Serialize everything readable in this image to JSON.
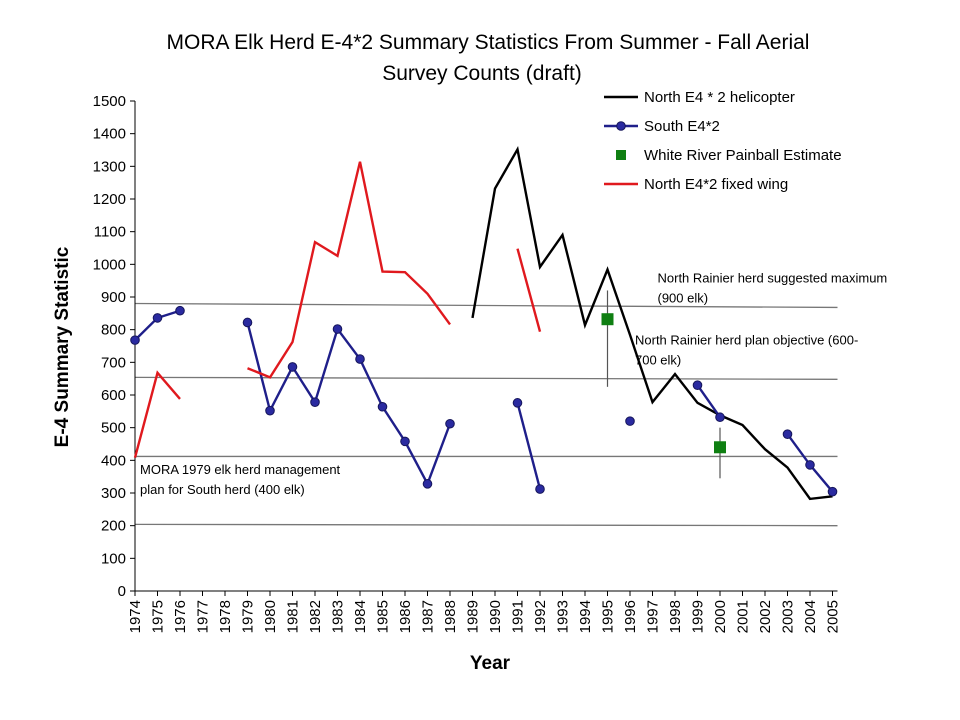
{
  "chart_data": {
    "type": "line",
    "title_lines": [
      "MORA Elk Herd E-4*2 Summary Statistics From Summer - Fall Aerial",
      "Survey Counts (draft)"
    ],
    "xlabel": "Year",
    "ylabel": "E-4 Summary Statistic",
    "ylim": [
      0,
      1500
    ],
    "yticks": [
      0,
      100,
      200,
      300,
      400,
      500,
      600,
      700,
      800,
      900,
      1000,
      1100,
      1200,
      1300,
      1400,
      1500
    ],
    "categories": [
      "1974",
      "1975",
      "1976",
      "1977",
      "1978",
      "1979",
      "1980",
      "1981",
      "1982",
      "1983",
      "1984",
      "1985",
      "1986",
      "1987",
      "1988",
      "1989",
      "1990",
      "1991",
      "1992",
      "1993",
      "1994",
      "1995",
      "1996",
      "1997",
      "1998",
      "1999",
      "2000",
      "2001",
      "2002",
      "2003",
      "2004",
      "2005"
    ],
    "grid": false,
    "legend_position": "top-right",
    "series": [
      {
        "name": "North E4 * 2 helicopter",
        "color": "#000000",
        "marker": "none",
        "values": [
          null,
          null,
          null,
          null,
          null,
          null,
          null,
          null,
          null,
          null,
          null,
          null,
          null,
          null,
          null,
          836,
          1232,
          1352,
          992,
          1090,
          814,
          984,
          784,
          578,
          664,
          576,
          538,
          508,
          434,
          378,
          282,
          290
        ]
      },
      {
        "name": "South E4*2",
        "color": "#1f1f8a",
        "marker": "circle",
        "values": [
          768,
          836,
          858,
          null,
          null,
          822,
          552,
          686,
          578,
          802,
          710,
          564,
          458,
          328,
          512,
          null,
          null,
          576,
          312,
          null,
          null,
          null,
          520,
          null,
          null,
          630,
          532,
          null,
          null,
          480,
          386,
          304
        ]
      },
      {
        "name": "White River Painball  Estimate",
        "color": "#0f7f12",
        "marker": "square",
        "line": false,
        "values": [
          null,
          null,
          null,
          null,
          null,
          null,
          null,
          null,
          null,
          null,
          null,
          null,
          null,
          null,
          null,
          null,
          null,
          null,
          null,
          null,
          null,
          832,
          null,
          null,
          null,
          null,
          440,
          null,
          null,
          null,
          null,
          null
        ],
        "error_bars": [
          {
            "x": "1995",
            "low": 625,
            "high": 920
          },
          {
            "x": "2000",
            "low": 345,
            "high": 500
          }
        ]
      },
      {
        "name": "North E4*2 fixed wing",
        "color": "#e0191e",
        "marker": "none",
        "values": [
          408,
          668,
          588,
          null,
          null,
          682,
          654,
          762,
          1068,
          1026,
          1314,
          978,
          976,
          910,
          816,
          null,
          null,
          1048,
          794,
          null,
          null,
          null,
          null,
          null,
          null,
          null,
          null,
          null,
          null,
          null,
          null,
          null
        ]
      }
    ],
    "reference_lines": [
      {
        "label": "",
        "y_start": 880,
        "y_end": 868,
        "x_start": "1974",
        "x_end": "2005"
      },
      {
        "label": "",
        "y_start": 654,
        "y_end": 648,
        "x_start": "1974",
        "x_end": "2005"
      },
      {
        "label": "",
        "y_start": 412,
        "y_end": 412,
        "x_start": "1974",
        "x_end": "2005"
      },
      {
        "label": "",
        "y_start": 204,
        "y_end": 200,
        "x_start": "1974",
        "x_end": "2005"
      }
    ],
    "annotations": [
      {
        "lines": [
          "North Rainier herd  suggested maximum",
          "(900 elk)"
        ],
        "x": "1997",
        "y": 945
      },
      {
        "lines": [
          "North Rainier herd plan objective (600-",
          "700 elk)"
        ],
        "x": "1996",
        "y": 755
      },
      {
        "lines": [
          "MORA 1979 elk herd management",
          "plan for South herd (400 elk)"
        ],
        "x": "1974",
        "y": 358
      }
    ]
  }
}
